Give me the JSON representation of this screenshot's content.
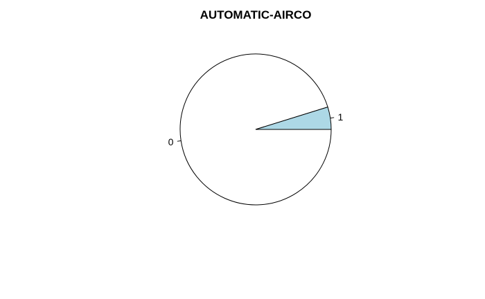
{
  "chart_data": {
    "type": "pie",
    "title": "AUTOMATIC-AIRCO",
    "categories": [
      "0",
      "1"
    ],
    "values": [
      0.952,
      0.048
    ],
    "colors": [
      "#ffffff",
      "#add8e6"
    ],
    "start_angle_deg": 0,
    "direction": "clockwise",
    "grid": false,
    "legend": "none"
  }
}
